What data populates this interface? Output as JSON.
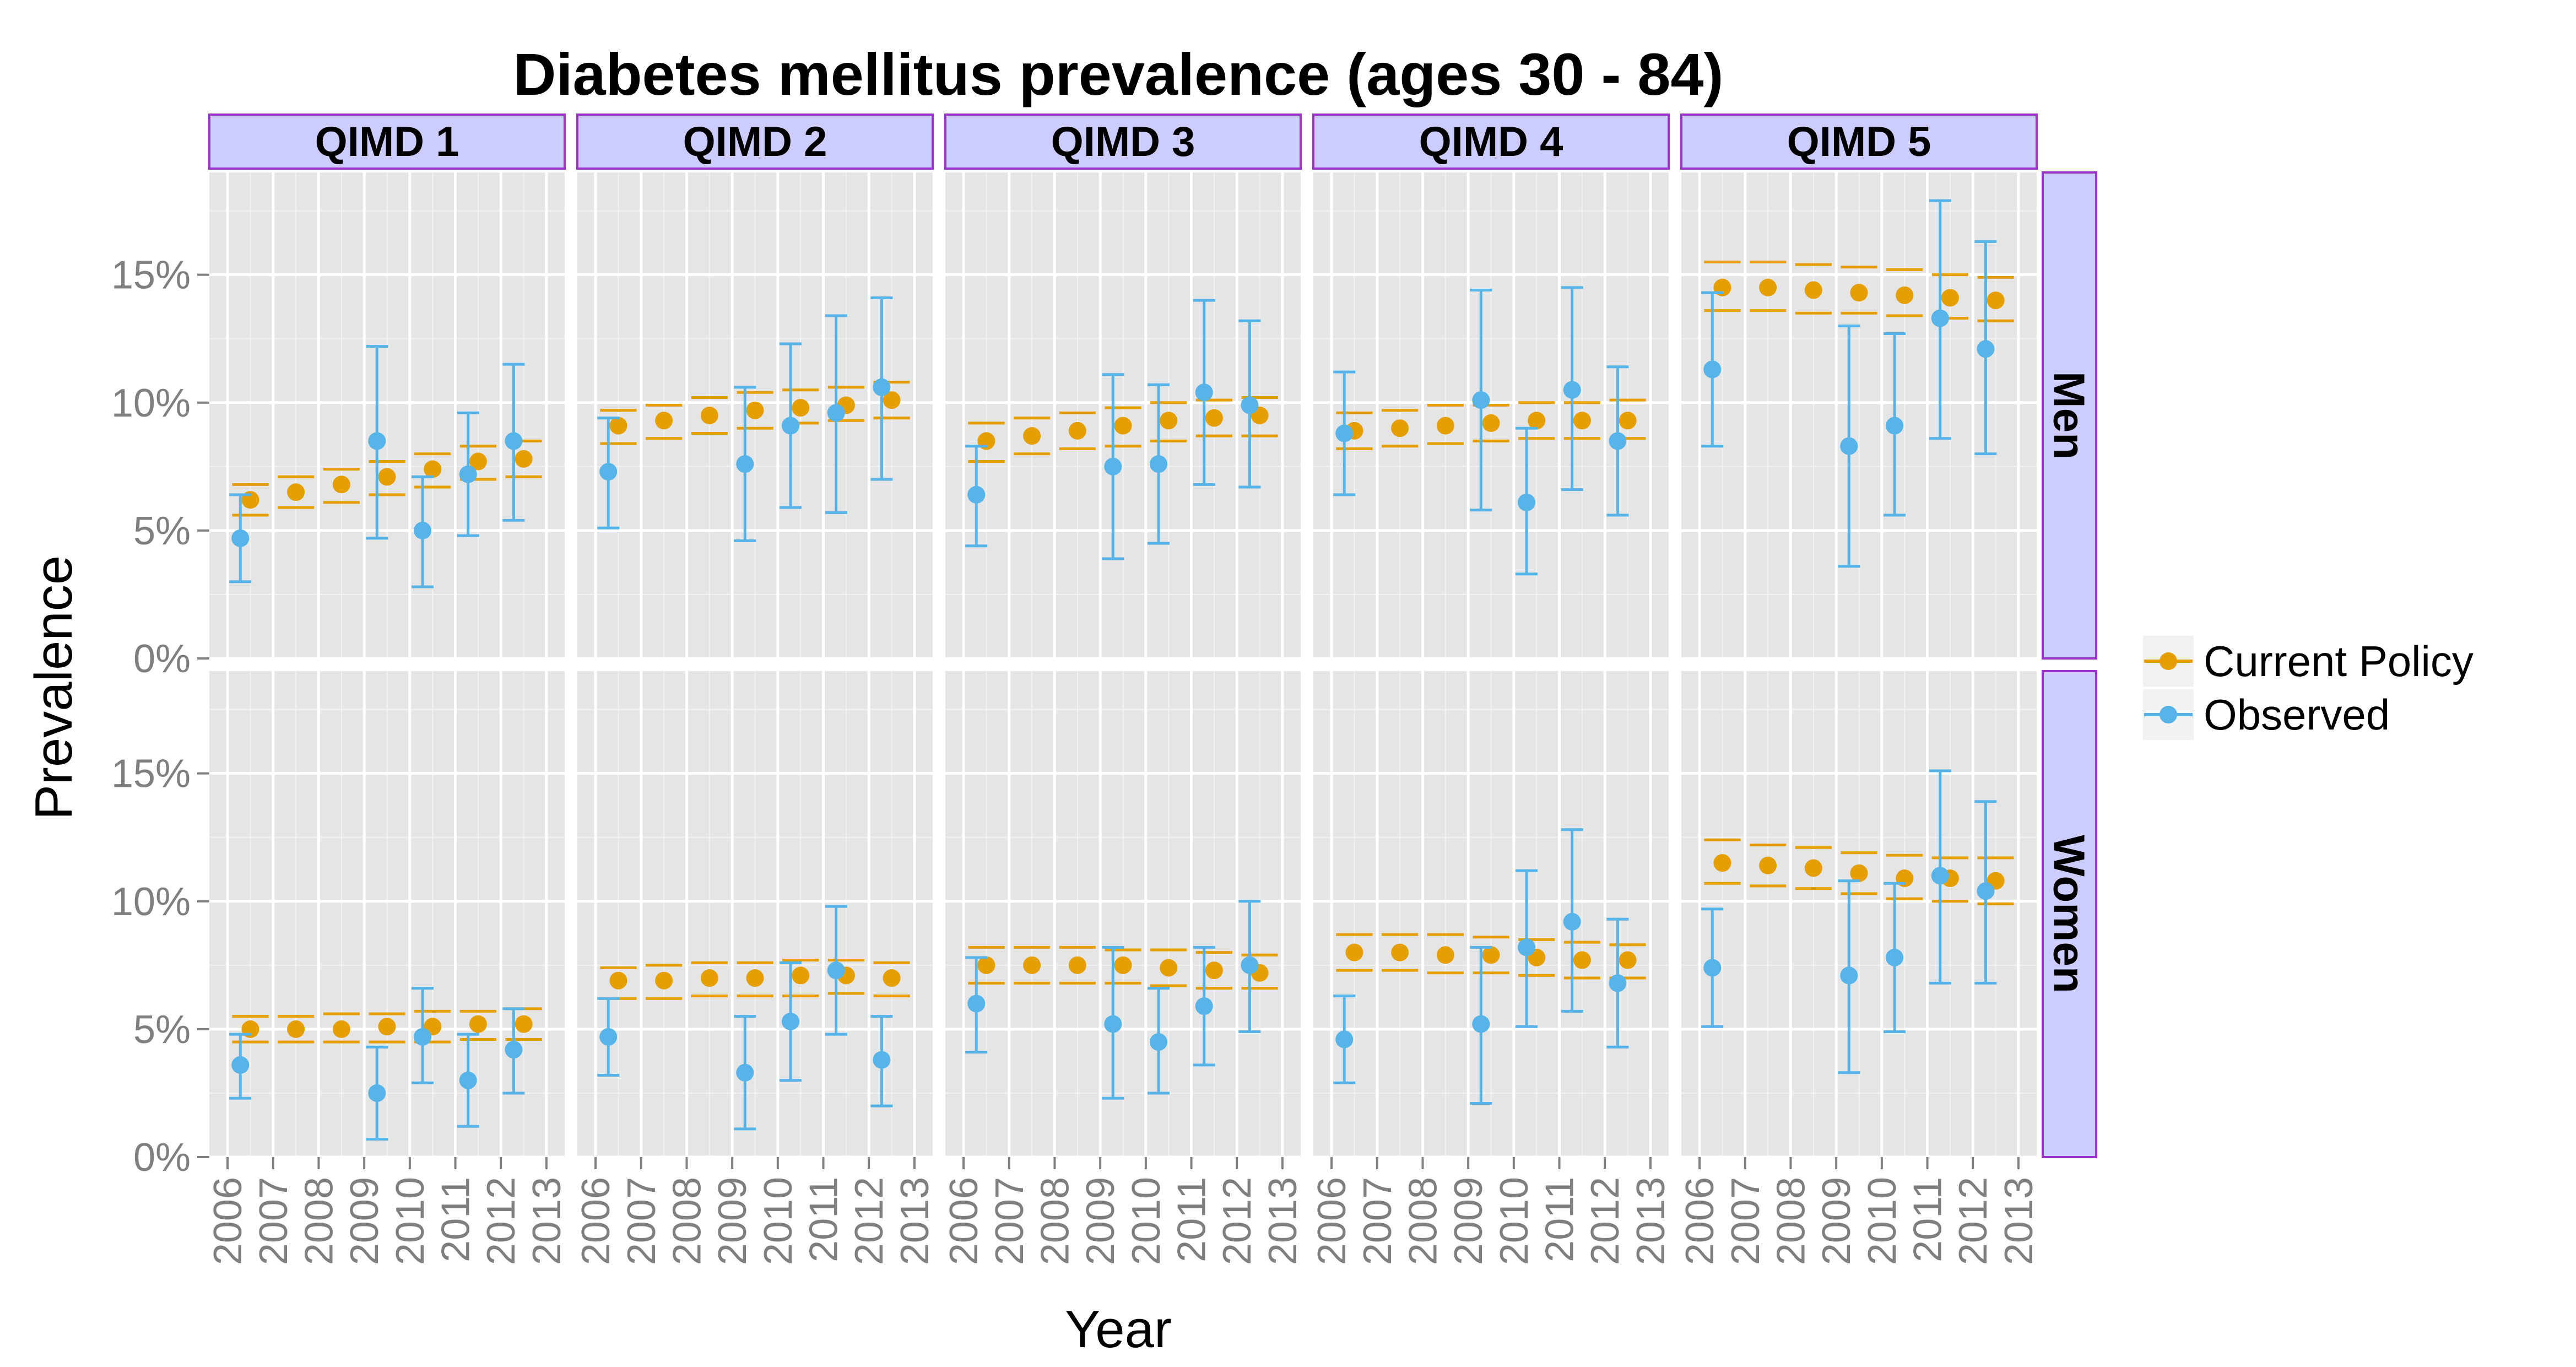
{
  "chart_data": {
    "type": "scatter",
    "title": "Diabetes mellitus prevalence (ages 30 - 84)",
    "xlabel": "Year",
    "ylabel": "Prevalence",
    "x_ticks": [
      "2006",
      "2007",
      "2008",
      "2009",
      "2010",
      "2011",
      "2012",
      "2013"
    ],
    "y_ticks": [
      "0%",
      "5%",
      "10%",
      "15%"
    ],
    "ylim": [
      0,
      0.19
    ],
    "grid": true,
    "legend_position": "right",
    "columns": [
      "QIMD 1",
      "QIMD 2",
      "QIMD 3",
      "QIMD 4",
      "QIMD 5"
    ],
    "rows": [
      "Men",
      "Women"
    ],
    "series": [
      {
        "name": "Current Policy",
        "color": "#E69F00"
      },
      {
        "name": "Observed",
        "color": "#56B4E9"
      }
    ],
    "x_offsets": {
      "Current Policy": 0,
      "Observed": -0.22
    },
    "panels": [
      {
        "column": "QIMD 1",
        "row": "Men",
        "current_policy": {
          "years": [
            2006,
            2007,
            2008,
            2009,
            2010,
            2011,
            2012
          ],
          "y": [
            0.062,
            0.065,
            0.068,
            0.071,
            0.074,
            0.077,
            0.078
          ],
          "lo": [
            0.056,
            0.059,
            0.061,
            0.064,
            0.067,
            0.07,
            0.071
          ],
          "hi": [
            0.068,
            0.071,
            0.074,
            0.077,
            0.08,
            0.083,
            0.085
          ]
        },
        "observed": {
          "years": [
            2006,
            2009,
            2010,
            2011,
            2012
          ],
          "y": [
            0.047,
            0.085,
            0.05,
            0.072,
            0.085
          ],
          "lo": [
            0.03,
            0.047,
            0.028,
            0.048,
            0.054
          ],
          "hi": [
            0.064,
            0.122,
            0.071,
            0.096,
            0.115
          ]
        }
      },
      {
        "column": "QIMD 2",
        "row": "Men",
        "current_policy": {
          "years": [
            2006,
            2007,
            2008,
            2009,
            2010,
            2011,
            2012
          ],
          "y": [
            0.091,
            0.093,
            0.095,
            0.097,
            0.098,
            0.099,
            0.101
          ],
          "lo": [
            0.084,
            0.086,
            0.088,
            0.09,
            0.092,
            0.093,
            0.094
          ],
          "hi": [
            0.097,
            0.099,
            0.102,
            0.104,
            0.105,
            0.106,
            0.108
          ]
        },
        "observed": {
          "years": [
            2006,
            2009,
            2010,
            2011,
            2012
          ],
          "y": [
            0.073,
            0.076,
            0.091,
            0.096,
            0.106
          ],
          "lo": [
            0.051,
            0.046,
            0.059,
            0.057,
            0.07
          ],
          "hi": [
            0.094,
            0.106,
            0.123,
            0.134,
            0.141
          ]
        }
      },
      {
        "column": "QIMD 3",
        "row": "Men",
        "current_policy": {
          "years": [
            2006,
            2007,
            2008,
            2009,
            2010,
            2011,
            2012
          ],
          "y": [
            0.085,
            0.087,
            0.089,
            0.091,
            0.093,
            0.094,
            0.095
          ],
          "lo": [
            0.077,
            0.08,
            0.082,
            0.083,
            0.085,
            0.087,
            0.087
          ],
          "hi": [
            0.092,
            0.094,
            0.096,
            0.098,
            0.1,
            0.101,
            0.102
          ]
        },
        "observed": {
          "years": [
            2006,
            2009,
            2010,
            2011,
            2012
          ],
          "y": [
            0.064,
            0.075,
            0.076,
            0.104,
            0.099
          ],
          "lo": [
            0.044,
            0.039,
            0.045,
            0.068,
            0.067
          ],
          "hi": [
            0.083,
            0.111,
            0.107,
            0.14,
            0.132
          ]
        }
      },
      {
        "column": "QIMD 4",
        "row": "Men",
        "current_policy": {
          "years": [
            2006,
            2007,
            2008,
            2009,
            2010,
            2011,
            2012
          ],
          "y": [
            0.089,
            0.09,
            0.091,
            0.092,
            0.093,
            0.093,
            0.093
          ],
          "lo": [
            0.082,
            0.083,
            0.084,
            0.085,
            0.086,
            0.086,
            0.086
          ],
          "hi": [
            0.096,
            0.097,
            0.099,
            0.099,
            0.1,
            0.1,
            0.101
          ]
        },
        "observed": {
          "years": [
            2006,
            2009,
            2010,
            2011,
            2012
          ],
          "y": [
            0.088,
            0.101,
            0.061,
            0.105,
            0.085
          ],
          "lo": [
            0.064,
            0.058,
            0.033,
            0.066,
            0.056
          ],
          "hi": [
            0.112,
            0.144,
            0.09,
            0.145,
            0.114
          ]
        }
      },
      {
        "column": "QIMD 5",
        "row": "Men",
        "current_policy": {
          "years": [
            2006,
            2007,
            2008,
            2009,
            2010,
            2011,
            2012
          ],
          "y": [
            0.145,
            0.145,
            0.144,
            0.143,
            0.142,
            0.141,
            0.14
          ],
          "lo": [
            0.136,
            0.136,
            0.135,
            0.135,
            0.134,
            0.133,
            0.132
          ],
          "hi": [
            0.155,
            0.155,
            0.154,
            0.153,
            0.152,
            0.15,
            0.149
          ]
        },
        "observed": {
          "years": [
            2006,
            2009,
            2010,
            2011,
            2012
          ],
          "y": [
            0.113,
            0.083,
            0.091,
            0.133,
            0.121
          ],
          "lo": [
            0.083,
            0.036,
            0.056,
            0.086,
            0.08
          ],
          "hi": [
            0.143,
            0.13,
            0.127,
            0.179,
            0.163
          ]
        }
      },
      {
        "column": "QIMD 1",
        "row": "Women",
        "current_policy": {
          "years": [
            2006,
            2007,
            2008,
            2009,
            2010,
            2011,
            2012
          ],
          "y": [
            0.05,
            0.05,
            0.05,
            0.051,
            0.051,
            0.052,
            0.052
          ],
          "lo": [
            0.045,
            0.045,
            0.045,
            0.045,
            0.045,
            0.046,
            0.046
          ],
          "hi": [
            0.055,
            0.055,
            0.056,
            0.056,
            0.057,
            0.057,
            0.058
          ]
        },
        "observed": {
          "years": [
            2006,
            2009,
            2010,
            2011,
            2012
          ],
          "y": [
            0.036,
            0.025,
            0.047,
            0.03,
            0.042
          ],
          "lo": [
            0.023,
            0.007,
            0.029,
            0.012,
            0.025
          ],
          "hi": [
            0.048,
            0.043,
            0.066,
            0.048,
            0.058
          ]
        }
      },
      {
        "column": "QIMD 2",
        "row": "Women",
        "current_policy": {
          "years": [
            2006,
            2007,
            2008,
            2009,
            2010,
            2011,
            2012
          ],
          "y": [
            0.069,
            0.069,
            0.07,
            0.07,
            0.071,
            0.071,
            0.07
          ],
          "lo": [
            0.062,
            0.062,
            0.063,
            0.063,
            0.063,
            0.064,
            0.063
          ],
          "hi": [
            0.074,
            0.075,
            0.076,
            0.076,
            0.077,
            0.077,
            0.076
          ]
        },
        "observed": {
          "years": [
            2006,
            2009,
            2010,
            2011,
            2012
          ],
          "y": [
            0.047,
            0.033,
            0.053,
            0.073,
            0.038
          ],
          "lo": [
            0.032,
            0.011,
            0.03,
            0.048,
            0.02
          ],
          "hi": [
            0.062,
            0.055,
            0.076,
            0.098,
            0.055
          ]
        }
      },
      {
        "column": "QIMD 3",
        "row": "Women",
        "current_policy": {
          "years": [
            2006,
            2007,
            2008,
            2009,
            2010,
            2011,
            2012
          ],
          "y": [
            0.075,
            0.075,
            0.075,
            0.075,
            0.074,
            0.073,
            0.072
          ],
          "lo": [
            0.068,
            0.068,
            0.068,
            0.068,
            0.067,
            0.066,
            0.066
          ],
          "hi": [
            0.082,
            0.082,
            0.082,
            0.081,
            0.081,
            0.08,
            0.079
          ]
        },
        "observed": {
          "years": [
            2006,
            2009,
            2010,
            2011,
            2012
          ],
          "y": [
            0.06,
            0.052,
            0.045,
            0.059,
            0.075
          ],
          "lo": [
            0.041,
            0.023,
            0.025,
            0.036,
            0.049
          ],
          "hi": [
            0.078,
            0.082,
            0.066,
            0.082,
            0.1
          ]
        }
      },
      {
        "column": "QIMD 4",
        "row": "Women",
        "current_policy": {
          "years": [
            2006,
            2007,
            2008,
            2009,
            2010,
            2011,
            2012
          ],
          "y": [
            0.08,
            0.08,
            0.079,
            0.079,
            0.078,
            0.077,
            0.077
          ],
          "lo": [
            0.073,
            0.073,
            0.072,
            0.072,
            0.071,
            0.07,
            0.07
          ],
          "hi": [
            0.087,
            0.087,
            0.087,
            0.086,
            0.085,
            0.084,
            0.083
          ]
        },
        "observed": {
          "years": [
            2006,
            2009,
            2010,
            2011,
            2012
          ],
          "y": [
            0.046,
            0.052,
            0.082,
            0.092,
            0.068
          ],
          "lo": [
            0.029,
            0.021,
            0.051,
            0.057,
            0.043
          ],
          "hi": [
            0.063,
            0.082,
            0.112,
            0.128,
            0.093
          ]
        }
      },
      {
        "column": "QIMD 5",
        "row": "Women",
        "current_policy": {
          "years": [
            2006,
            2007,
            2008,
            2009,
            2010,
            2011,
            2012
          ],
          "y": [
            0.115,
            0.114,
            0.113,
            0.111,
            0.109,
            0.109,
            0.108
          ],
          "lo": [
            0.107,
            0.106,
            0.105,
            0.103,
            0.101,
            0.1,
            0.099
          ],
          "hi": [
            0.124,
            0.122,
            0.121,
            0.119,
            0.118,
            0.117,
            0.117
          ]
        },
        "observed": {
          "years": [
            2006,
            2009,
            2010,
            2011,
            2012
          ],
          "y": [
            0.074,
            0.071,
            0.078,
            0.11,
            0.104
          ],
          "lo": [
            0.051,
            0.033,
            0.049,
            0.068,
            0.068
          ],
          "hi": [
            0.097,
            0.108,
            0.107,
            0.151,
            0.139
          ]
        }
      }
    ]
  }
}
